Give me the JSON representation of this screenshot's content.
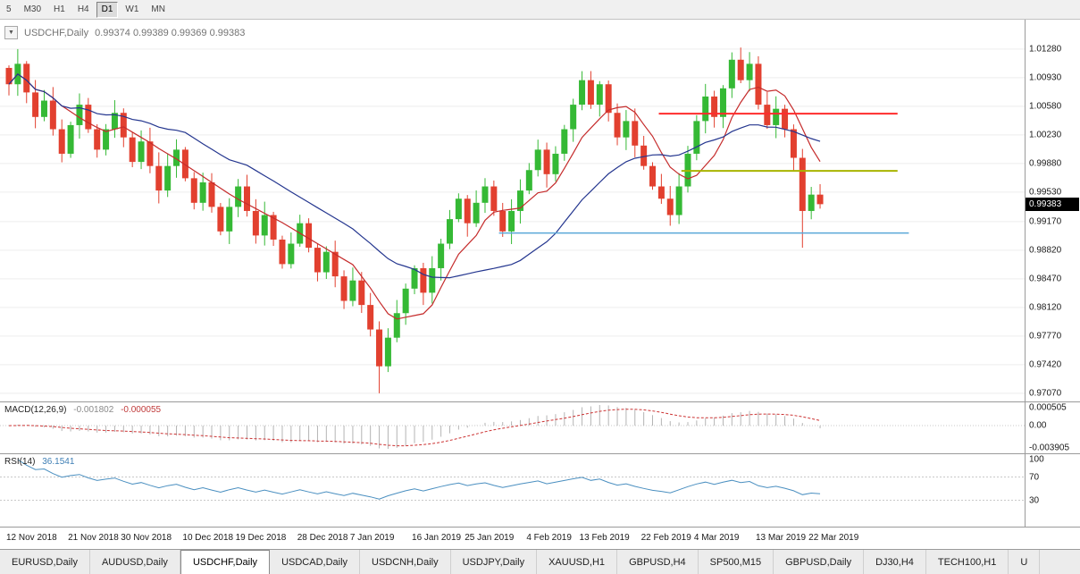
{
  "toolbar": {
    "timeframes": [
      {
        "label": "5"
      },
      {
        "label": "M30"
      },
      {
        "label": "H1"
      },
      {
        "label": "H4"
      },
      {
        "label": "D1",
        "active": true
      },
      {
        "label": "W1"
      },
      {
        "label": "MN"
      }
    ]
  },
  "chart": {
    "symbol_title": "USDCHF,Daily",
    "ohlc": "0.99374 0.99389 0.99369 0.99383",
    "last_price_label": "0.99383"
  },
  "chart_data": {
    "type": "candlestick",
    "title": "USDCHF,Daily",
    "up_color": "#35b935",
    "down_color": "#e2402f",
    "first_open": 1.0105,
    "closes": [
      1.0085,
      1.011,
      1.0075,
      1.0045,
      1.0065,
      1.003,
      1.0,
      1.0035,
      1.006,
      1.003,
      1.0005,
      1.003,
      1.005,
      1.002,
      0.999,
      1.0015,
      0.9985,
      0.9955,
      0.9985,
      1.0005,
      0.997,
      0.994,
      0.9965,
      0.9935,
      0.9905,
      0.9935,
      0.996,
      0.993,
      0.99,
      0.9925,
      0.9895,
      0.9865,
      0.989,
      0.9915,
      0.9885,
      0.9855,
      0.988,
      0.985,
      0.982,
      0.9845,
      0.9815,
      0.9785,
      0.974,
      0.9775,
      0.9805,
      0.9835,
      0.986,
      0.983,
      0.986,
      0.989,
      0.992,
      0.9945,
      0.9915,
      0.994,
      0.996,
      0.993,
      0.9905,
      0.993,
      0.9955,
      0.998,
      1.0005,
      0.9975,
      1.0,
      1.003,
      1.006,
      1.009,
      1.006,
      1.0085,
      1.005,
      1.002,
      1.004,
      1.001,
      0.9985,
      0.996,
      0.9945,
      0.9925,
      0.996,
      1.0,
      1.004,
      1.007,
      1.0045,
      1.008,
      1.0115,
      1.009,
      1.011,
      1.006,
      1.0035,
      1.0055,
      1.003,
      0.9995,
      0.993,
      0.995,
      0.99383
    ],
    "wick_overrides": {
      "1": {
        "high": 1.0128
      },
      "42": {
        "low": 0.9707
      },
      "65": {
        "high": 1.0101
      },
      "82": {
        "high": 1.0124
      },
      "90": {
        "low": 0.9885
      }
    },
    "price_axis": {
      "max": 1.0164,
      "min": 0.9697,
      "ticks": [
        "1.01280",
        "1.00930",
        "1.00580",
        "1.00230",
        "0.99880",
        "0.99530",
        "0.99170",
        "0.98820",
        "0.98470",
        "0.98120",
        "0.97770",
        "0.97420",
        "0.97070"
      ]
    },
    "moving_averages": [
      {
        "period": 7,
        "color": "#c52b2b"
      },
      {
        "period": 21,
        "color": "#24368f"
      }
    ],
    "hlines": [
      {
        "price": 1.0049,
        "color": "#ff2b2b",
        "from": 0.643,
        "to": 0.876,
        "width": 2
      },
      {
        "price": 0.9979,
        "color": "#a8b400",
        "from": 0.665,
        "to": 0.876,
        "width": 2
      },
      {
        "price": 0.9903,
        "color": "#5aa7d8",
        "from": 0.487,
        "to": 0.887,
        "width": 1.5
      }
    ],
    "x_dates": [
      {
        "idx": 0,
        "label": "12 Nov 2018"
      },
      {
        "idx": 7,
        "label": "21 Nov 2018"
      },
      {
        "idx": 13,
        "label": "30 Nov 2018"
      },
      {
        "idx": 20,
        "label": "10 Dec 2018"
      },
      {
        "idx": 26,
        "label": "19 Dec 2018"
      },
      {
        "idx": 33,
        "label": "28 Dec 2018"
      },
      {
        "idx": 39,
        "label": "7 Jan 2019"
      },
      {
        "idx": 46,
        "label": "16 Jan 2019"
      },
      {
        "idx": 52,
        "label": "25 Jan 2019"
      },
      {
        "idx": 59,
        "label": "4 Feb 2019"
      },
      {
        "idx": 65,
        "label": "13 Feb 2019"
      },
      {
        "idx": 72,
        "label": "22 Feb 2019"
      },
      {
        "idx": 78,
        "label": "4 Mar 2019"
      },
      {
        "idx": 85,
        "label": "13 Mar 2019"
      },
      {
        "idx": 91,
        "label": "22 Mar 2019"
      }
    ],
    "macd": {
      "label": "MACD(12,26,9)",
      "value_main": "-0.001802",
      "value_signal": "-0.000055",
      "fast": 12,
      "slow": 26,
      "signal": 9,
      "axis_labels": [
        "0.000505",
        "0.00",
        "-0.003905"
      ],
      "histogram_color": "#b4b4b4",
      "signal_color": "#cc3333"
    },
    "rsi": {
      "label": "RSI(14)",
      "value": "36.1541",
      "period": 14,
      "levels": [
        70,
        30
      ],
      "axis_labels": [
        "100",
        "70",
        "30"
      ],
      "line_color": "#4a8fc0"
    }
  },
  "tabs": [
    {
      "label": "EURUSD,Daily"
    },
    {
      "label": "AUDUSD,Daily"
    },
    {
      "label": "USDCHF,Daily",
      "active": true
    },
    {
      "label": "USDCAD,Daily"
    },
    {
      "label": "USDCNH,Daily"
    },
    {
      "label": "USDJPY,Daily"
    },
    {
      "label": "XAUUSD,H1"
    },
    {
      "label": "GBPUSD,H4"
    },
    {
      "label": "SP500,M15"
    },
    {
      "label": "GBPUSD,Daily"
    },
    {
      "label": "DJ30,H4"
    },
    {
      "label": "TECH100,H1"
    },
    {
      "label": "U"
    }
  ]
}
